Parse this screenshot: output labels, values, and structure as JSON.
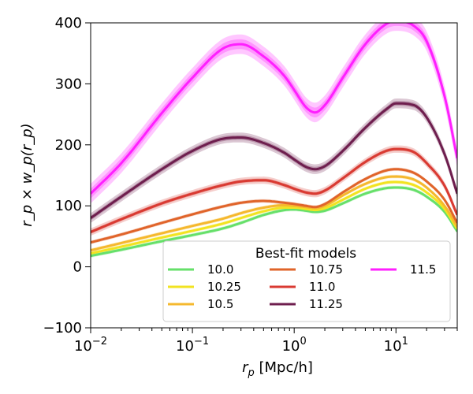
{
  "chart_data": {
    "type": "line",
    "xscale": "log",
    "xlim": [
      0.01,
      40
    ],
    "ylim": [
      -100,
      400
    ],
    "xlabel_var": "r",
    "xlabel_sub": "p",
    "xlabel_unit": " [Mpc/h]",
    "ylabel": "r_p × w_p(r_p)",
    "x_ticks": [
      {
        "value": 0.01,
        "base": "10",
        "exp": "−2"
      },
      {
        "value": 0.1,
        "base": "10",
        "exp": "−1"
      },
      {
        "value": 1,
        "base": "10",
        "exp": "0"
      },
      {
        "value": 10,
        "base": "10",
        "exp": "1"
      }
    ],
    "y_ticks": [
      {
        "value": -100,
        "label": "−100"
      },
      {
        "value": 0,
        "label": "0"
      },
      {
        "value": 100,
        "label": "100"
      },
      {
        "value": 200,
        "label": "200"
      },
      {
        "value": 300,
        "label": "300"
      },
      {
        "value": 400,
        "label": "400"
      }
    ],
    "legend": {
      "title": "Best-fit models",
      "placement": "lower-right",
      "columns": 3
    },
    "x": [
      0.01,
      0.02,
      0.05,
      0.1,
      0.2,
      0.3,
      0.5,
      0.8,
      1.0,
      1.3,
      1.6,
      2.0,
      3.0,
      5.0,
      8.0,
      10.0,
      15.0,
      20.0,
      30.0,
      40.0
    ],
    "series": [
      {
        "name": "10.0",
        "color": "#66e06a",
        "band": 3,
        "values": [
          18,
          28,
          42,
          52,
          63,
          72,
          85,
          93,
          94,
          92,
          90,
          92,
          104,
          120,
          129,
          130,
          126,
          115,
          90,
          58
        ]
      },
      {
        "name": "10.25",
        "color": "#f2e321",
        "band": 3,
        "values": [
          22,
          33,
          48,
          59,
          71,
          80,
          91,
          97,
          97,
          95,
          93,
          96,
          110,
          128,
          138,
          139,
          134,
          122,
          95,
          62
        ]
      },
      {
        "name": "10.5",
        "color": "#f5b82e",
        "band": 3,
        "values": [
          27,
          39,
          55,
          67,
          79,
          88,
          97,
          101,
          100,
          98,
          96,
          100,
          117,
          136,
          147,
          148,
          143,
          130,
          100,
          66
        ]
      },
      {
        "name": "10.75",
        "color": "#e0642a",
        "band": 3,
        "values": [
          40,
          53,
          72,
          86,
          99,
          105,
          108,
          105,
          103,
          100,
          98,
          103,
          122,
          144,
          158,
          160,
          154,
          140,
          110,
          72
        ]
      },
      {
        "name": "11.0",
        "color": "#d93a32",
        "band": 6,
        "values": [
          57,
          78,
          104,
          120,
          134,
          140,
          142,
          134,
          128,
          122,
          120,
          125,
          145,
          172,
          190,
          193,
          188,
          170,
          133,
          85
        ]
      },
      {
        "name": "11.25",
        "color": "#6e1e4e",
        "band": 8,
        "values": [
          80,
          115,
          160,
          190,
          210,
          212,
          203,
          187,
          176,
          164,
          160,
          165,
          190,
          228,
          258,
          268,
          265,
          245,
          185,
          120
        ]
      },
      {
        "name": "11.5",
        "color": "#ff1fff",
        "band": 16,
        "values": [
          120,
          170,
          252,
          310,
          358,
          365,
          345,
          313,
          290,
          262,
          253,
          265,
          310,
          365,
          398,
          403,
          395,
          370,
          280,
          178
        ]
      }
    ]
  }
}
